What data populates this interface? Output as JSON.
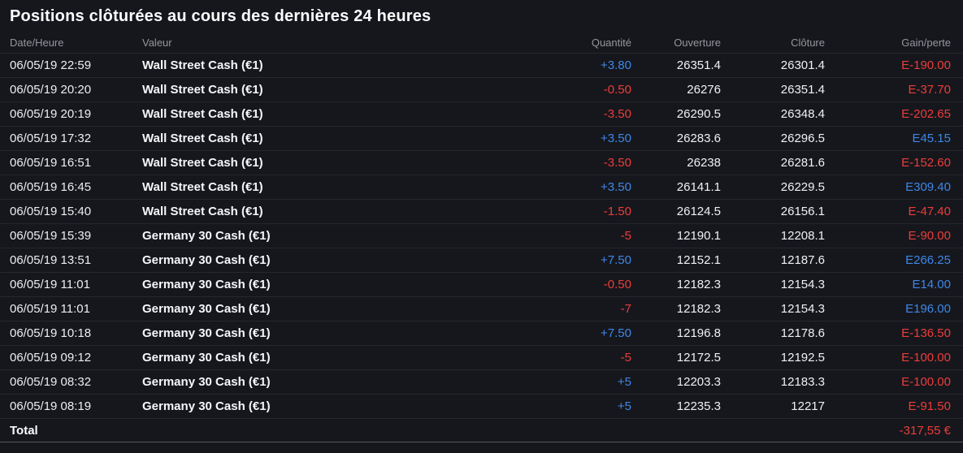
{
  "title": "Positions clôturées au cours des dernières 24 heures",
  "colors": {
    "background": "#16171d",
    "positive": "#3d87e6",
    "negative": "#ec3d39",
    "header_text": "#94969c",
    "separator": "#26272c"
  },
  "table": {
    "columns": [
      "Date/Heure",
      "Valeur",
      "Quantité",
      "Ouverture",
      "Clôture",
      "Gain/perte"
    ],
    "rows": [
      {
        "datetime": "06/05/19 22:59",
        "instrument": "Wall Street Cash (€1)",
        "quantity": "+3.80",
        "quantity_dir": "up",
        "open": "26351.4",
        "close": "26301.4",
        "pnl": "E-190.00",
        "pnl_dir": "down"
      },
      {
        "datetime": "06/05/19 20:20",
        "instrument": "Wall Street Cash (€1)",
        "quantity": "-0.50",
        "quantity_dir": "down",
        "open": "26276",
        "close": "26351.4",
        "pnl": "E-37.70",
        "pnl_dir": "down"
      },
      {
        "datetime": "06/05/19 20:19",
        "instrument": "Wall Street Cash (€1)",
        "quantity": "-3.50",
        "quantity_dir": "down",
        "open": "26290.5",
        "close": "26348.4",
        "pnl": "E-202.65",
        "pnl_dir": "down"
      },
      {
        "datetime": "06/05/19 17:32",
        "instrument": "Wall Street Cash (€1)",
        "quantity": "+3.50",
        "quantity_dir": "up",
        "open": "26283.6",
        "close": "26296.5",
        "pnl": "E45.15",
        "pnl_dir": "up"
      },
      {
        "datetime": "06/05/19 16:51",
        "instrument": "Wall Street Cash (€1)",
        "quantity": "-3.50",
        "quantity_dir": "down",
        "open": "26238",
        "close": "26281.6",
        "pnl": "E-152.60",
        "pnl_dir": "down"
      },
      {
        "datetime": "06/05/19 16:45",
        "instrument": "Wall Street Cash (€1)",
        "quantity": "+3.50",
        "quantity_dir": "up",
        "open": "26141.1",
        "close": "26229.5",
        "pnl": "E309.40",
        "pnl_dir": "up"
      },
      {
        "datetime": "06/05/19 15:40",
        "instrument": "Wall Street Cash (€1)",
        "quantity": "-1.50",
        "quantity_dir": "down",
        "open": "26124.5",
        "close": "26156.1",
        "pnl": "E-47.40",
        "pnl_dir": "down"
      },
      {
        "datetime": "06/05/19 15:39",
        "instrument": "Germany 30 Cash (€1)",
        "quantity": "-5",
        "quantity_dir": "down",
        "open": "12190.1",
        "close": "12208.1",
        "pnl": "E-90.00",
        "pnl_dir": "down"
      },
      {
        "datetime": "06/05/19 13:51",
        "instrument": "Germany 30 Cash (€1)",
        "quantity": "+7.50",
        "quantity_dir": "up",
        "open": "12152.1",
        "close": "12187.6",
        "pnl": "E266.25",
        "pnl_dir": "up"
      },
      {
        "datetime": "06/05/19 11:01",
        "instrument": "Germany 30 Cash (€1)",
        "quantity": "-0.50",
        "quantity_dir": "down",
        "open": "12182.3",
        "close": "12154.3",
        "pnl": "E14.00",
        "pnl_dir": "up"
      },
      {
        "datetime": "06/05/19 11:01",
        "instrument": "Germany 30 Cash (€1)",
        "quantity": "-7",
        "quantity_dir": "down",
        "open": "12182.3",
        "close": "12154.3",
        "pnl": "E196.00",
        "pnl_dir": "up"
      },
      {
        "datetime": "06/05/19 10:18",
        "instrument": "Germany 30 Cash (€1)",
        "quantity": "+7.50",
        "quantity_dir": "up",
        "open": "12196.8",
        "close": "12178.6",
        "pnl": "E-136.50",
        "pnl_dir": "down"
      },
      {
        "datetime": "06/05/19 09:12",
        "instrument": "Germany 30 Cash (€1)",
        "quantity": "-5",
        "quantity_dir": "down",
        "open": "12172.5",
        "close": "12192.5",
        "pnl": "E-100.00",
        "pnl_dir": "down"
      },
      {
        "datetime": "06/05/19 08:32",
        "instrument": "Germany 30 Cash (€1)",
        "quantity": "+5",
        "quantity_dir": "up",
        "open": "12203.3",
        "close": "12183.3",
        "pnl": "E-100.00",
        "pnl_dir": "down"
      },
      {
        "datetime": "06/05/19 08:19",
        "instrument": "Germany 30 Cash (€1)",
        "quantity": "+5",
        "quantity_dir": "up",
        "open": "12235.3",
        "close": "12217",
        "pnl": "E-91.50",
        "pnl_dir": "down"
      }
    ],
    "total": {
      "label": "Total",
      "value": "-317,55 €",
      "dir": "down"
    }
  }
}
